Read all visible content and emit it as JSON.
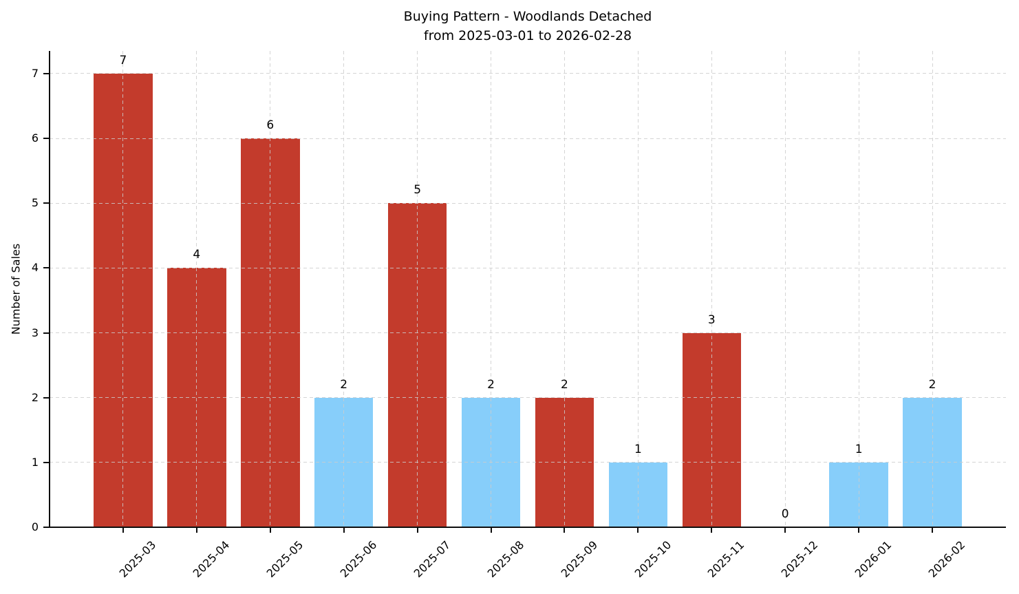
{
  "chart_data": {
    "type": "bar",
    "title": "Buying Pattern - Woodlands Detached",
    "subtitle": "from 2025-03-01 to 2026-02-28",
    "xlabel": "",
    "ylabel": "Number of Sales",
    "categories": [
      "2025-03",
      "2025-04",
      "2025-05",
      "2025-06",
      "2025-07",
      "2025-08",
      "2025-09",
      "2025-10",
      "2025-11",
      "2025-12",
      "2026-01",
      "2026-02"
    ],
    "values": [
      7,
      4,
      6,
      2,
      5,
      2,
      2,
      1,
      3,
      0,
      1,
      2
    ],
    "bar_colors": [
      "#c33b2c",
      "#c33b2c",
      "#c33b2c",
      "#87cefa",
      "#c33b2c",
      "#87cefa",
      "#c33b2c",
      "#87cefa",
      "#c33b2c",
      null,
      "#87cefa",
      "#87cefa"
    ],
    "value_labels": [
      "7",
      "4",
      "6",
      "2",
      "5",
      "2",
      "2",
      "1",
      "3",
      "0",
      "1",
      "2"
    ],
    "yticks": [
      0,
      1,
      2,
      3,
      4,
      5,
      6,
      7
    ],
    "ylim": [
      0,
      7.35
    ],
    "grid": {
      "style": "dashed",
      "axes": "both",
      "color": "#cccccc",
      "drawn_over_bars": true
    },
    "legend": "none",
    "palette": {
      "red": "#c33b2c",
      "blue": "#87cefa"
    }
  }
}
